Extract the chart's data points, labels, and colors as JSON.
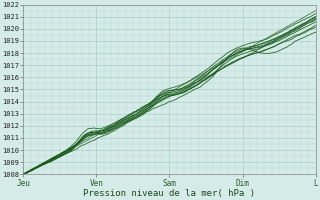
{
  "xlabel": "Pression niveau de la mer( hPa )",
  "ylim": [
    1008,
    1022
  ],
  "yticks": [
    1008,
    1009,
    1010,
    1011,
    1012,
    1013,
    1014,
    1015,
    1016,
    1017,
    1018,
    1019,
    1020,
    1021,
    1022
  ],
  "xtick_labels": [
    "Jeu",
    "Ven",
    "Sam",
    "Dim",
    "L"
  ],
  "xtick_positions": [
    0.0,
    0.25,
    0.5,
    0.75,
    1.0
  ],
  "bg_color": "#d4ebe8",
  "grid_color_major": "#a0c8c4",
  "grid_color_minor": "#b8d8d5",
  "line_color": "#1a5c1a",
  "n_points": 300,
  "figsize": [
    3.2,
    2.0
  ],
  "dpi": 100
}
